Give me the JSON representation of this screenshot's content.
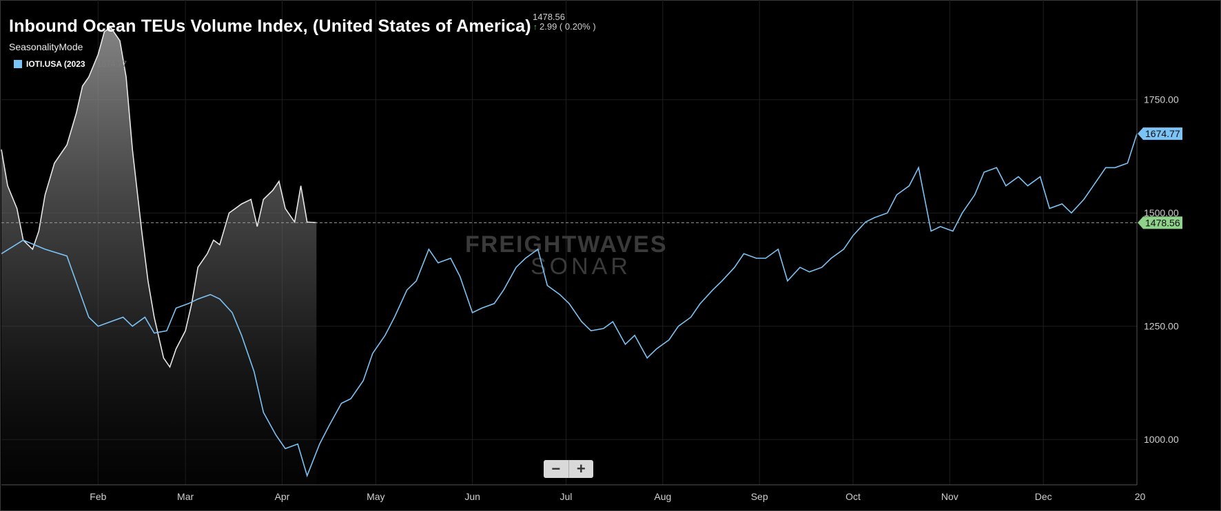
{
  "header": {
    "title": "Inbound Ocean TEUs Volume Index, (United States of America)",
    "last_value": "1478.56",
    "change_arrow": "↑",
    "change_text": "2.99 ( 0.20% )",
    "mode": "SeasonalityMode"
  },
  "legend": {
    "label": "IOTI.USA (2023",
    "value": "1674.77",
    "color": "#7cc3f5"
  },
  "watermark": {
    "line1": "FREIGHTWAVES",
    "line2": "SONAR"
  },
  "zoom": {
    "minus": "−",
    "plus": "+"
  },
  "chart_data": {
    "type": "line",
    "x_tick_labels": [
      "Feb",
      "Mar",
      "Apr",
      "May",
      "Jun",
      "Jul",
      "Aug",
      "Sep",
      "Oct",
      "Nov",
      "Dec",
      "20"
    ],
    "y_tick_labels": [
      "1750.00",
      "1500.00",
      "1250.00",
      "1000.00"
    ],
    "ylim": [
      900,
      1970
    ],
    "grid": true,
    "reference_line": 1478.56,
    "series": [
      {
        "name": "IOTI.USA (2023",
        "color": "#7cc3f5",
        "last_label": "1674.77",
        "x": [
          1,
          8,
          15,
          22,
          29,
          32,
          36,
          40,
          43,
          47,
          50,
          54,
          57,
          61,
          64,
          68,
          71,
          75,
          78,
          82,
          85,
          89,
          92,
          96,
          99,
          103,
          106,
          110,
          113,
          117,
          120,
          124,
          127,
          131,
          134,
          138,
          141,
          145,
          148,
          152,
          155,
          159,
          162,
          166,
          169,
          173,
          176,
          180,
          183,
          187,
          190,
          194,
          197,
          201,
          204,
          208,
          211,
          215,
          218,
          222,
          225,
          229,
          232,
          236,
          239,
          243,
          246,
          250,
          253,
          257,
          260,
          264,
          267,
          271,
          274,
          278,
          281,
          285,
          288,
          292,
          295,
          299,
          302,
          306,
          309,
          313,
          316,
          320,
          323,
          327,
          330,
          334,
          337,
          341,
          344,
          348,
          351,
          355,
          358,
          362,
          365
        ],
        "y": [
          1410,
          1440,
          1420,
          1405,
          1270,
          1250,
          1260,
          1270,
          1250,
          1270,
          1235,
          1240,
          1290,
          1300,
          1310,
          1320,
          1310,
          1280,
          1230,
          1150,
          1060,
          1010,
          980,
          990,
          920,
          990,
          1030,
          1080,
          1090,
          1130,
          1190,
          1230,
          1270,
          1330,
          1350,
          1420,
          1390,
          1400,
          1360,
          1280,
          1290,
          1300,
          1330,
          1380,
          1400,
          1420,
          1340,
          1320,
          1300,
          1260,
          1240,
          1245,
          1260,
          1210,
          1230,
          1180,
          1200,
          1220,
          1250,
          1270,
          1300,
          1330,
          1350,
          1380,
          1410,
          1400,
          1400,
          1420,
          1350,
          1380,
          1370,
          1380,
          1400,
          1420,
          1450,
          1480,
          1490,
          1500,
          1540,
          1560,
          1600,
          1460,
          1470,
          1460,
          1500,
          1540,
          1590,
          1600,
          1560,
          1580,
          1560,
          1580,
          1510,
          1520,
          1500,
          1530,
          1560,
          1600,
          1600,
          1610,
          1675
        ]
      },
      {
        "name": "",
        "color": "#e8e8e8",
        "x": [
          1,
          3,
          6,
          8,
          11,
          13,
          15,
          18,
          20,
          22,
          25,
          27,
          29,
          32,
          34,
          36,
          39,
          41,
          43,
          46,
          48,
          50,
          53,
          55,
          57,
          60,
          62,
          64,
          67,
          69,
          71,
          74,
          76,
          78,
          81,
          83,
          85,
          88,
          90,
          92,
          95,
          97,
          99,
          102
        ],
        "y": [
          1640,
          1560,
          1510,
          1440,
          1420,
          1460,
          1540,
          1610,
          1630,
          1650,
          1720,
          1780,
          1800,
          1850,
          1900,
          1910,
          1880,
          1800,
          1640,
          1460,
          1350,
          1270,
          1180,
          1160,
          1200,
          1240,
          1300,
          1380,
          1410,
          1440,
          1430,
          1500,
          1510,
          1520,
          1530,
          1470,
          1530,
          1550,
          1570,
          1510,
          1480,
          1560,
          1480,
          1478.56
        ]
      }
    ]
  }
}
